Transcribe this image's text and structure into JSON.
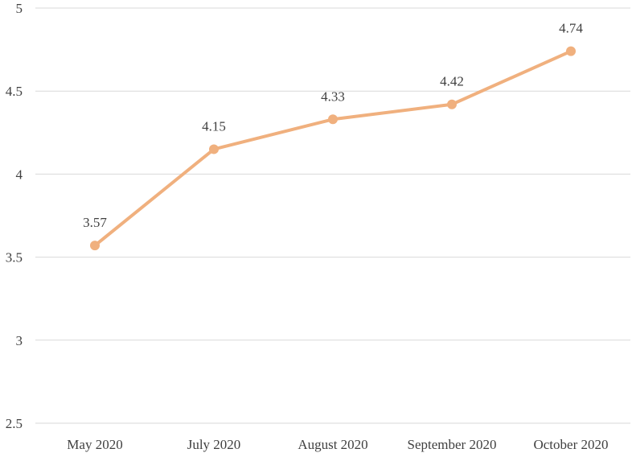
{
  "chart_data": {
    "type": "line",
    "categories": [
      "May 2020",
      "July 2020",
      "August 2020",
      "September 2020",
      "October 2020"
    ],
    "series": [
      {
        "values": [
          3.57,
          4.15,
          4.33,
          4.42,
          4.74
        ]
      }
    ],
    "data_labels": [
      "3.57",
      "4.15",
      "4.33",
      "4.42",
      "4.74"
    ],
    "y_ticks": [
      "2.5",
      "3",
      "3.5",
      "4",
      "4.5",
      "5"
    ],
    "ylim": [
      2.5,
      5
    ],
    "grid": true,
    "legend": "none",
    "line_color": "#f0b07e",
    "grid_color": "#d9d9d9",
    "text_color": "#404040"
  }
}
